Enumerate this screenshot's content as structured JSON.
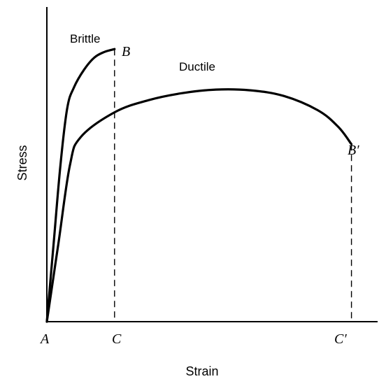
{
  "chart_data": {
    "type": "line",
    "title": "",
    "xlabel": "Strain",
    "ylabel": "Stress",
    "grid": false,
    "legend": "none",
    "x_ticks": [],
    "y_ticks": [],
    "series": [
      {
        "name": "Brittle",
        "color": "#000000",
        "points": [
          [
            0,
            0
          ],
          [
            0.1,
            1.1
          ],
          [
            0.2,
            2.2
          ],
          [
            0.3,
            3.0
          ],
          [
            0.4,
            3.3
          ],
          [
            0.55,
            3.55
          ],
          [
            0.7,
            3.72
          ],
          [
            0.85,
            3.8
          ],
          [
            1.0,
            3.84
          ]
        ],
        "end_point_label": "B"
      },
      {
        "name": "Ductile",
        "color": "#000000",
        "points": [
          [
            0,
            0
          ],
          [
            0.17,
            1.1
          ],
          [
            0.34,
            2.2
          ],
          [
            0.5,
            2.6
          ],
          [
            1.0,
            2.95
          ],
          [
            1.5,
            3.12
          ],
          [
            2.0,
            3.22
          ],
          [
            2.5,
            3.27
          ],
          [
            3.0,
            3.26
          ],
          [
            3.5,
            3.18
          ],
          [
            4.0,
            2.98
          ],
          [
            4.3,
            2.75
          ],
          [
            4.5,
            2.5
          ]
        ],
        "end_point_label": "B′"
      }
    ],
    "dashed_drops": [
      {
        "x": 1.0,
        "y": 3.84,
        "top_label": "B",
        "bottom_label": "C"
      },
      {
        "x": 4.5,
        "y": 2.5,
        "top_label": "B′",
        "bottom_label": "C′"
      }
    ],
    "origin_label": "A"
  },
  "labels": {
    "brittle": "Brittle",
    "ductile": "Ductile",
    "B": "B",
    "B_prime": "B′",
    "A": "A",
    "C": "C",
    "C_prime": "C′",
    "xlabel": "Strain",
    "ylabel": "Stress"
  },
  "colors": {
    "line": "#000000",
    "background": "#ffffff"
  }
}
